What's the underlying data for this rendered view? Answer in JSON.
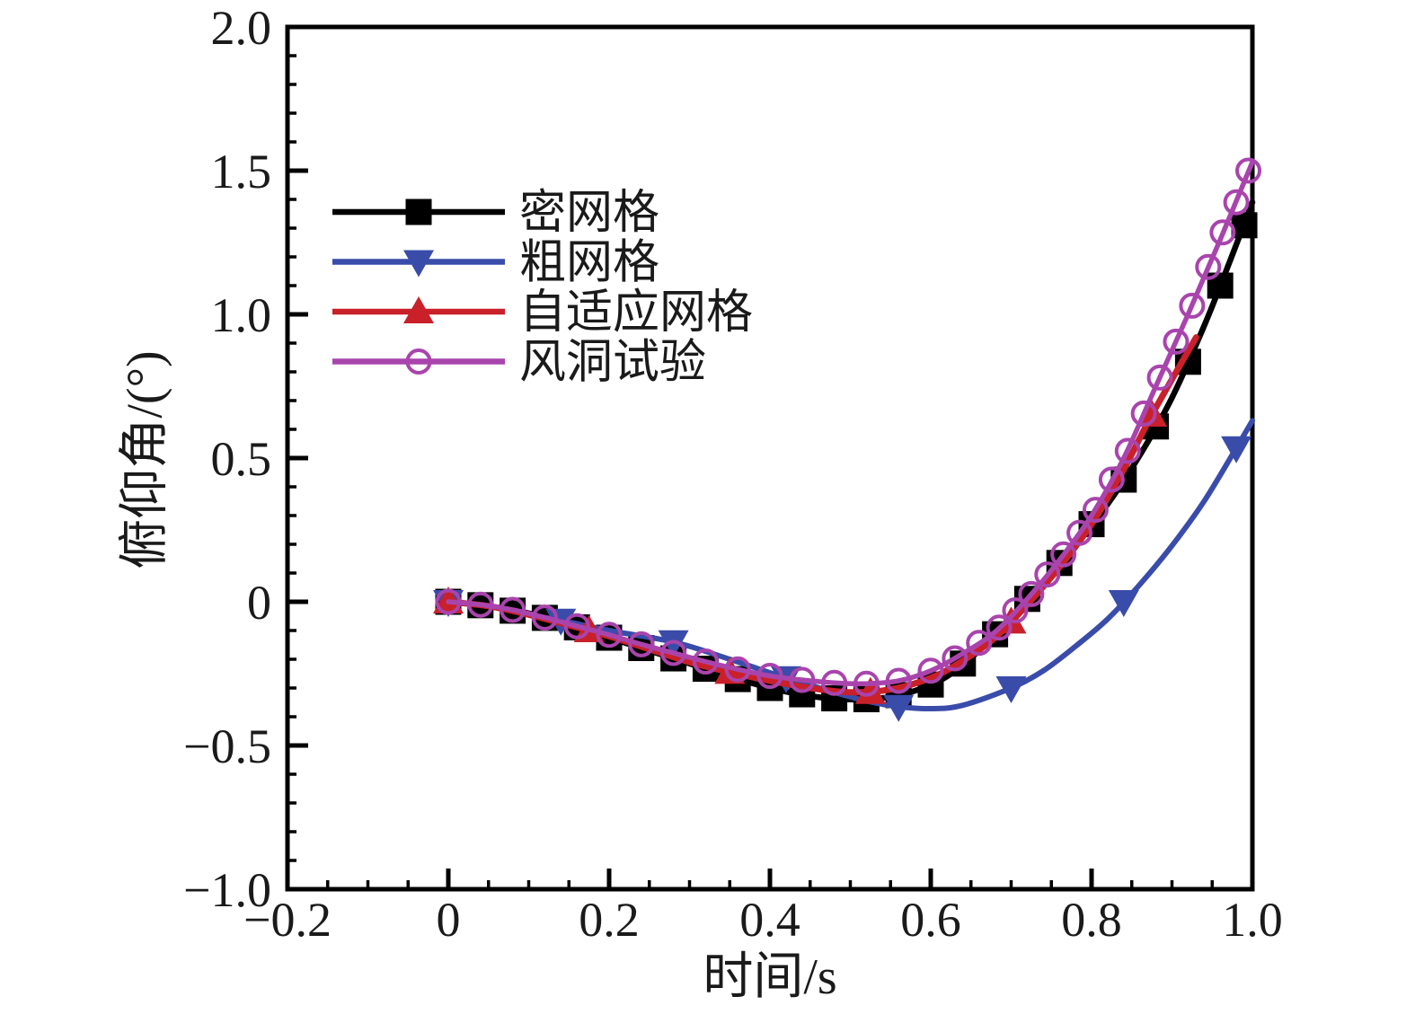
{
  "figure": {
    "background": "#ffffff",
    "frame_color": "#000000",
    "text_color": "#1a1a1a"
  },
  "chart_data": {
    "type": "line",
    "title": "",
    "xlabel": "时间/s",
    "ylabel": "俯仰角/(°)",
    "xlim": [
      -0.2,
      1.0
    ],
    "ylim": [
      -1.0,
      2.0
    ],
    "grid": false,
    "legend_position": "upper-left-inside",
    "x_major_ticks": [
      -0.2,
      0,
      0.2,
      0.4,
      0.6,
      0.8,
      1.0
    ],
    "x_tick_labels": [
      "−0.2",
      "0",
      "0.2",
      "0.4",
      "0.6",
      "0.8",
      "1.0"
    ],
    "x_minor_step": 0.05,
    "y_major_ticks": [
      -1.0,
      -0.5,
      0,
      0.5,
      1.0,
      1.5,
      2.0
    ],
    "y_tick_labels": [
      "−1.0",
      "−0.5",
      "0",
      "0.5",
      "1.0",
      "1.5",
      "2.0"
    ],
    "y_minor_step": 0.1,
    "series": [
      {
        "id": "dense-mesh",
        "name": "密网格",
        "color": "#000000",
        "marker": "square",
        "line": [
          [
            0,
            0
          ],
          [
            0.05,
            -0.015
          ],
          [
            0.1,
            -0.04
          ],
          [
            0.15,
            -0.08
          ],
          [
            0.2,
            -0.125
          ],
          [
            0.25,
            -0.17
          ],
          [
            0.3,
            -0.215
          ],
          [
            0.35,
            -0.26
          ],
          [
            0.4,
            -0.3
          ],
          [
            0.45,
            -0.328
          ],
          [
            0.5,
            -0.34
          ],
          [
            0.545,
            -0.333
          ],
          [
            0.58,
            -0.31
          ],
          [
            0.62,
            -0.26
          ],
          [
            0.66,
            -0.17
          ],
          [
            0.7,
            -0.055
          ],
          [
            0.74,
            0.07
          ],
          [
            0.78,
            0.2
          ],
          [
            0.82,
            0.34
          ],
          [
            0.86,
            0.51
          ],
          [
            0.9,
            0.71
          ],
          [
            0.94,
            0.96
          ],
          [
            0.97,
            1.17
          ],
          [
            1.0,
            1.39
          ]
        ],
        "markers": [
          [
            0,
            0
          ],
          [
            0.04,
            -0.012
          ],
          [
            0.08,
            -0.031
          ],
          [
            0.12,
            -0.056
          ],
          [
            0.16,
            -0.089
          ],
          [
            0.2,
            -0.125
          ],
          [
            0.24,
            -0.161
          ],
          [
            0.28,
            -0.197
          ],
          [
            0.32,
            -0.233
          ],
          [
            0.36,
            -0.269
          ],
          [
            0.4,
            -0.3
          ],
          [
            0.44,
            -0.322
          ],
          [
            0.48,
            -0.336
          ],
          [
            0.52,
            -0.339
          ],
          [
            0.56,
            -0.325
          ],
          [
            0.6,
            -0.288
          ],
          [
            0.64,
            -0.215
          ],
          [
            0.68,
            -0.113
          ],
          [
            0.72,
            0.01
          ],
          [
            0.76,
            0.135
          ],
          [
            0.8,
            0.27
          ],
          [
            0.84,
            0.425
          ],
          [
            0.88,
            0.61
          ],
          [
            0.92,
            0.835
          ],
          [
            0.96,
            1.1
          ],
          [
            0.99,
            1.31
          ]
        ]
      },
      {
        "id": "coarse-mesh",
        "name": "粗网格",
        "color": "#3a4caa",
        "marker": "triangle-down",
        "line": [
          [
            0,
            0
          ],
          [
            0.05,
            -0.015
          ],
          [
            0.1,
            -0.045
          ],
          [
            0.14,
            -0.065
          ],
          [
            0.2,
            -0.1
          ],
          [
            0.28,
            -0.14
          ],
          [
            0.35,
            -0.2
          ],
          [
            0.42,
            -0.265
          ],
          [
            0.48,
            -0.315
          ],
          [
            0.52,
            -0.345
          ],
          [
            0.56,
            -0.365
          ],
          [
            0.6,
            -0.372
          ],
          [
            0.64,
            -0.36
          ],
          [
            0.7,
            -0.3
          ],
          [
            0.74,
            -0.24
          ],
          [
            0.78,
            -0.155
          ],
          [
            0.82,
            -0.06
          ],
          [
            0.86,
            0.06
          ],
          [
            0.9,
            0.195
          ],
          [
            0.94,
            0.35
          ],
          [
            0.98,
            0.535
          ],
          [
            1.0,
            0.63
          ]
        ],
        "markers": [
          [
            0,
            0
          ],
          [
            0.14,
            -0.065
          ],
          [
            0.28,
            -0.14
          ],
          [
            0.42,
            -0.265
          ],
          [
            0.56,
            -0.365
          ],
          [
            0.7,
            -0.3
          ],
          [
            0.84,
            0.0
          ],
          [
            0.98,
            0.535
          ]
        ]
      },
      {
        "id": "adaptive-mesh",
        "name": "自适应网格",
        "color": "#c9202a",
        "marker": "triangle-up",
        "line": [
          [
            0,
            0
          ],
          [
            0.05,
            -0.015
          ],
          [
            0.1,
            -0.045
          ],
          [
            0.15,
            -0.082
          ],
          [
            0.2,
            -0.12
          ],
          [
            0.25,
            -0.165
          ],
          [
            0.3,
            -0.21
          ],
          [
            0.35,
            -0.245
          ],
          [
            0.4,
            -0.275
          ],
          [
            0.45,
            -0.3
          ],
          [
            0.5,
            -0.315
          ],
          [
            0.55,
            -0.305
          ],
          [
            0.6,
            -0.265
          ],
          [
            0.64,
            -0.205
          ],
          [
            0.68,
            -0.125
          ],
          [
            0.72,
            -0.01
          ],
          [
            0.76,
            0.12
          ],
          [
            0.8,
            0.27
          ],
          [
            0.84,
            0.46
          ],
          [
            0.875,
            0.65
          ],
          [
            0.93,
            0.92
          ]
        ],
        "markers": [
          [
            0,
            0
          ],
          [
            0.175,
            -0.1
          ],
          [
            0.35,
            -0.245
          ],
          [
            0.525,
            -0.315
          ],
          [
            0.7,
            -0.07
          ],
          [
            0.875,
            0.65
          ]
        ]
      },
      {
        "id": "wind-tunnel",
        "name": "风洞试验",
        "color": "#a944ad",
        "marker": "circle-open",
        "line": [
          [
            0,
            0
          ],
          [
            0.04,
            -0.01
          ],
          [
            0.08,
            -0.028
          ],
          [
            0.12,
            -0.055
          ],
          [
            0.16,
            -0.085
          ],
          [
            0.2,
            -0.115
          ],
          [
            0.24,
            -0.148
          ],
          [
            0.28,
            -0.178
          ],
          [
            0.32,
            -0.208
          ],
          [
            0.36,
            -0.235
          ],
          [
            0.4,
            -0.258
          ],
          [
            0.44,
            -0.272
          ],
          [
            0.48,
            -0.282
          ],
          [
            0.52,
            -0.285
          ],
          [
            0.56,
            -0.275
          ],
          [
            0.6,
            -0.24
          ],
          [
            0.64,
            -0.18
          ],
          [
            0.68,
            -0.105
          ],
          [
            0.72,
            0.01
          ],
          [
            0.76,
            0.145
          ],
          [
            0.8,
            0.3
          ],
          [
            0.84,
            0.5
          ],
          [
            0.88,
            0.75
          ],
          [
            0.92,
            1.0
          ],
          [
            0.96,
            1.26
          ],
          [
            1.0,
            1.53
          ]
        ],
        "markers": [
          [
            0,
            0
          ],
          [
            0.04,
            -0.01
          ],
          [
            0.08,
            -0.028
          ],
          [
            0.12,
            -0.055
          ],
          [
            0.16,
            -0.085
          ],
          [
            0.2,
            -0.115
          ],
          [
            0.24,
            -0.148
          ],
          [
            0.28,
            -0.178
          ],
          [
            0.32,
            -0.208
          ],
          [
            0.36,
            -0.235
          ],
          [
            0.4,
            -0.258
          ],
          [
            0.44,
            -0.272
          ],
          [
            0.48,
            -0.282
          ],
          [
            0.52,
            -0.285
          ],
          [
            0.56,
            -0.275
          ],
          [
            0.6,
            -0.24
          ],
          [
            0.63,
            -0.197
          ],
          [
            0.66,
            -0.143
          ],
          [
            0.685,
            -0.09
          ],
          [
            0.705,
            -0.03
          ],
          [
            0.725,
            0.027
          ],
          [
            0.745,
            0.095
          ],
          [
            0.765,
            0.165
          ],
          [
            0.785,
            0.24
          ],
          [
            0.805,
            0.32
          ],
          [
            0.825,
            0.425
          ],
          [
            0.845,
            0.525
          ],
          [
            0.865,
            0.655
          ],
          [
            0.885,
            0.78
          ],
          [
            0.905,
            0.905
          ],
          [
            0.925,
            1.03
          ],
          [
            0.945,
            1.165
          ],
          [
            0.963,
            1.285
          ],
          [
            0.98,
            1.39
          ],
          [
            0.995,
            1.5
          ]
        ]
      }
    ]
  }
}
